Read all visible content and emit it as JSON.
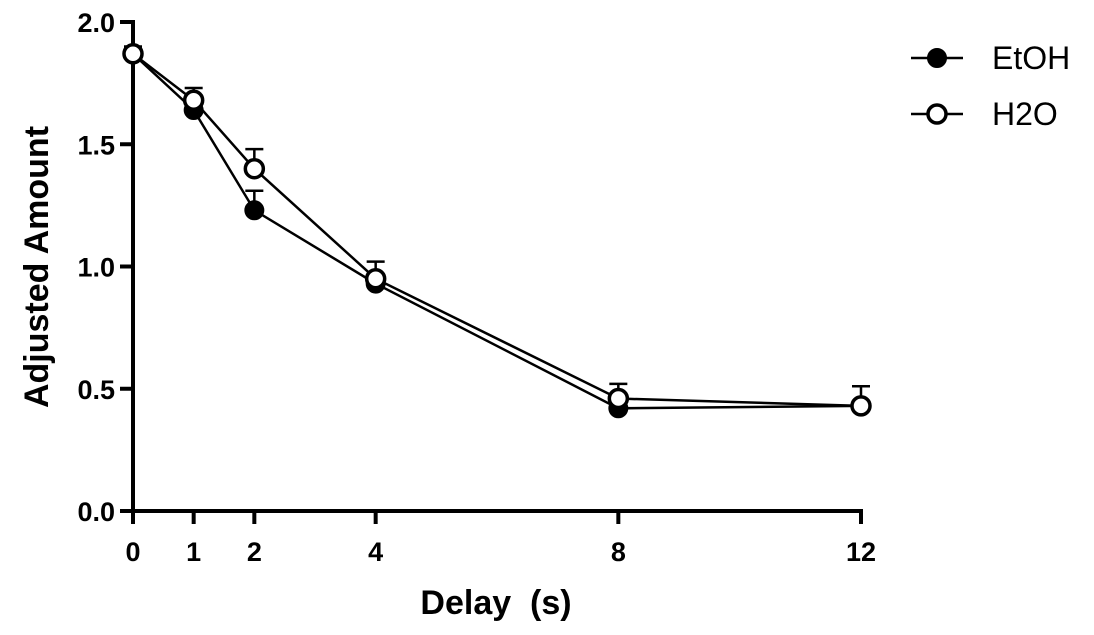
{
  "chart_data": {
    "type": "line",
    "xlabel": "Delay  (s)",
    "ylabel": "Adjusted Amount",
    "xlim": [
      0,
      12
    ],
    "ylim": [
      0,
      2.0
    ],
    "x_ticks": [
      0,
      1,
      2,
      4,
      8,
      12
    ],
    "y_ticks": [
      0.0,
      0.5,
      1.0,
      1.5,
      2.0
    ],
    "x_tick_labels": [
      "0",
      "1",
      "2",
      "4",
      "8",
      "12"
    ],
    "y_tick_labels": [
      "0.0",
      "0.5",
      "1.0",
      "1.5",
      "2.0"
    ],
    "grid": false,
    "legend_position": "top-right",
    "series": [
      {
        "name": "EtOH",
        "marker": "filled-circle",
        "x": [
          0,
          1,
          2,
          4,
          8,
          12
        ],
        "y": [
          1.87,
          1.64,
          1.23,
          0.93,
          0.42,
          0.43
        ],
        "err": [
          0.02,
          0.02,
          0.08,
          0.02,
          0.02,
          0.02
        ]
      },
      {
        "name": "H2O",
        "marker": "open-circle",
        "x": [
          0,
          1,
          2,
          4,
          8,
          12
        ],
        "y": [
          1.87,
          1.68,
          1.4,
          0.95,
          0.46,
          0.43
        ],
        "err": [
          0.03,
          0.05,
          0.08,
          0.07,
          0.06,
          0.08
        ]
      }
    ],
    "colors": {
      "line": "#000000",
      "marker": "#000000",
      "background": "#ffffff"
    }
  }
}
